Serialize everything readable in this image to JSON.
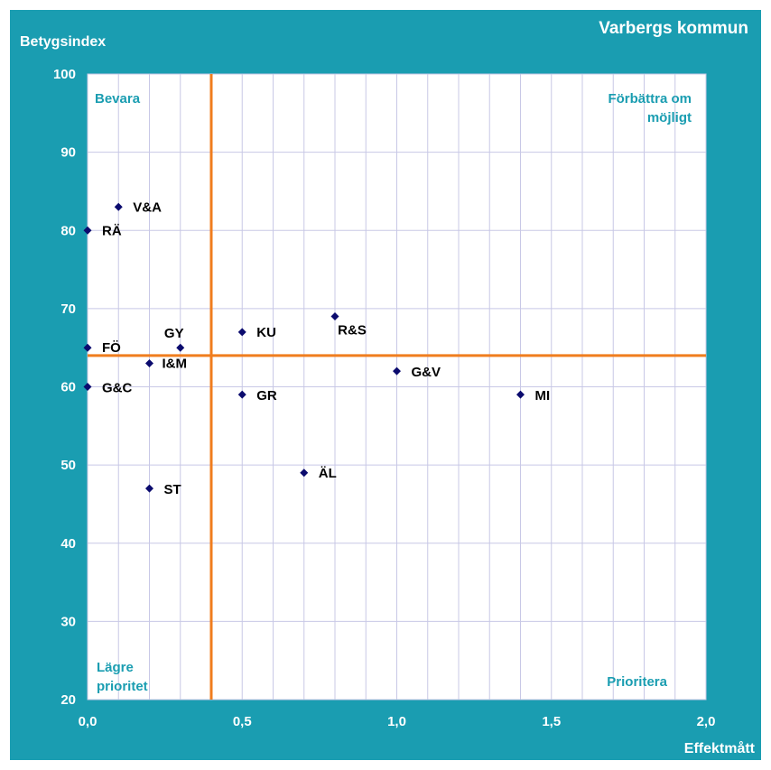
{
  "chart_data": {
    "type": "scatter",
    "title": "Varbergs kommun",
    "xlabel": "Effektmått",
    "ylabel": "Betygsindex",
    "xlim": [
      0,
      2
    ],
    "ylim": [
      20,
      100
    ],
    "x_ticks": [
      "0,0",
      "0,5",
      "1,0",
      "1,5",
      "2,0"
    ],
    "y_ticks": [
      "20",
      "30",
      "40",
      "50",
      "60",
      "70",
      "80",
      "90",
      "100"
    ],
    "grid": true,
    "reference_lines": {
      "x": 0.4,
      "y": 64
    },
    "quadrant_labels": {
      "top_left": "Bevara",
      "top_right": [
        "Förbättra om",
        "möjligt"
      ],
      "bottom_left": [
        "Lägre",
        "prioritet"
      ],
      "bottom_right": "Prioritera"
    },
    "points": [
      {
        "label": "V&A",
        "x": 0.1,
        "y": 83
      },
      {
        "label": "RÄ",
        "x": 0.0,
        "y": 80
      },
      {
        "label": "FÖ",
        "x": 0.0,
        "y": 65
      },
      {
        "label": "GY",
        "x": 0.3,
        "y": 65
      },
      {
        "label": "I&M",
        "x": 0.2,
        "y": 63
      },
      {
        "label": "G&C",
        "x": 0.0,
        "y": 60
      },
      {
        "label": "ST",
        "x": 0.2,
        "y": 47
      },
      {
        "label": "KU",
        "x": 0.5,
        "y": 67
      },
      {
        "label": "GR",
        "x": 0.5,
        "y": 59
      },
      {
        "label": "R&S",
        "x": 0.8,
        "y": 69
      },
      {
        "label": "G&V",
        "x": 1.0,
        "y": 62
      },
      {
        "label": "ÄL",
        "x": 0.7,
        "y": 49
      },
      {
        "label": "MI",
        "x": 1.4,
        "y": 59
      }
    ],
    "colors": {
      "background": "#1a9db1",
      "plot_area": "#ffffff",
      "grid": "#c8c8e6",
      "reference_line": "#f07d1e",
      "point": "#0b0b6e",
      "axis_text": "#ffffff",
      "point_label": "#000000",
      "quadrant_label": "#1a9db1"
    }
  }
}
